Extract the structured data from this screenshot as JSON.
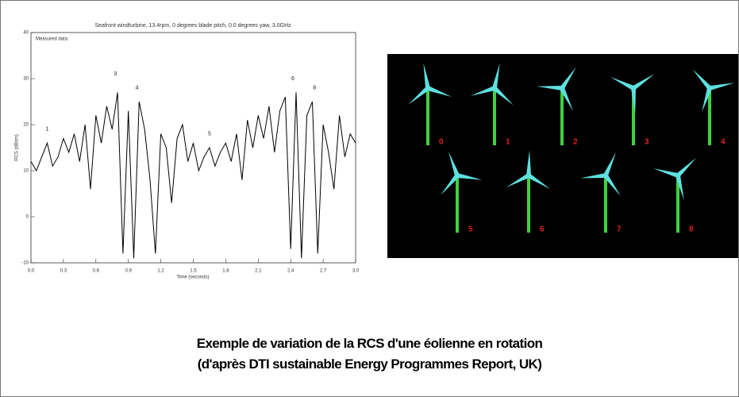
{
  "chart_data": {
    "type": "line",
    "title": "Seafront windturbine, 13.4rpm, 0 degrees blade pitch, 0.0 degrees yaw, 3.0GHz",
    "x_label": "Time (seconds)",
    "y_label": "RCS (dBsm)",
    "x": [
      0.0,
      0.05,
      0.1,
      0.15,
      0.2,
      0.25,
      0.3,
      0.35,
      0.4,
      0.45,
      0.5,
      0.55,
      0.6,
      0.65,
      0.7,
      0.75,
      0.8,
      0.85,
      0.9,
      0.95,
      1.0,
      1.05,
      1.1,
      1.15,
      1.2,
      1.25,
      1.3,
      1.35,
      1.4,
      1.45,
      1.5,
      1.55,
      1.6,
      1.65,
      1.7,
      1.75,
      1.8,
      1.85,
      1.9,
      1.95,
      2.0,
      2.05,
      2.1,
      2.15,
      2.2,
      2.25,
      2.3,
      2.35,
      2.4,
      2.45,
      2.5,
      2.55,
      2.6,
      2.65,
      2.7,
      2.75,
      2.8,
      2.85,
      2.9,
      2.95,
      3.0
    ],
    "series": [
      {
        "name": "Measured data",
        "color": "#000000",
        "values": [
          12,
          10,
          13,
          16,
          11,
          13,
          17,
          14,
          18,
          12,
          20,
          6,
          22,
          16,
          24,
          19,
          27,
          -8,
          23,
          -9,
          25,
          19,
          8,
          -8,
          18,
          15,
          3,
          17,
          20,
          12,
          16,
          10,
          13,
          15,
          11,
          14,
          16,
          12,
          18,
          8,
          21,
          15,
          22,
          17,
          24,
          14,
          23,
          26,
          -7,
          27,
          -9,
          22,
          25,
          -8,
          20,
          14,
          6,
          22,
          13,
          18,
          16
        ]
      }
    ],
    "xlim": [
      0.0,
      3.0
    ],
    "xticks": [
      {
        "value": 0,
        "label": "0.0"
      },
      0.3,
      0.6,
      0.9,
      1.2,
      1.5,
      1.8,
      2.1,
      2.4,
      2.7,
      {
        "value": 3,
        "label": "3.0"
      }
    ],
    "ylim": [
      -10,
      40
    ],
    "yticks": [
      -10,
      0,
      10,
      20,
      30,
      40
    ],
    "annotations": [
      {
        "text": "1",
        "x": 0.15,
        "y": 19
      },
      {
        "text": "3",
        "x": 0.78,
        "y": 31
      },
      {
        "text": "4",
        "x": 0.98,
        "y": 28
      },
      {
        "text": "5",
        "x": 1.65,
        "y": 18
      },
      {
        "text": "6",
        "x": 2.42,
        "y": 30
      },
      {
        "text": "8",
        "x": 2.62,
        "y": 28
      }
    ]
  },
  "turbine_panel": {
    "labels": [
      "0",
      "1",
      "2",
      "3",
      "4",
      "5",
      "6",
      "7",
      "8"
    ]
  },
  "caption": [
    "Exemple de variation de la RCS d'une éolienne en rotation",
    "(d'après DTI sustainable Energy Programmes Report, UK)"
  ]
}
